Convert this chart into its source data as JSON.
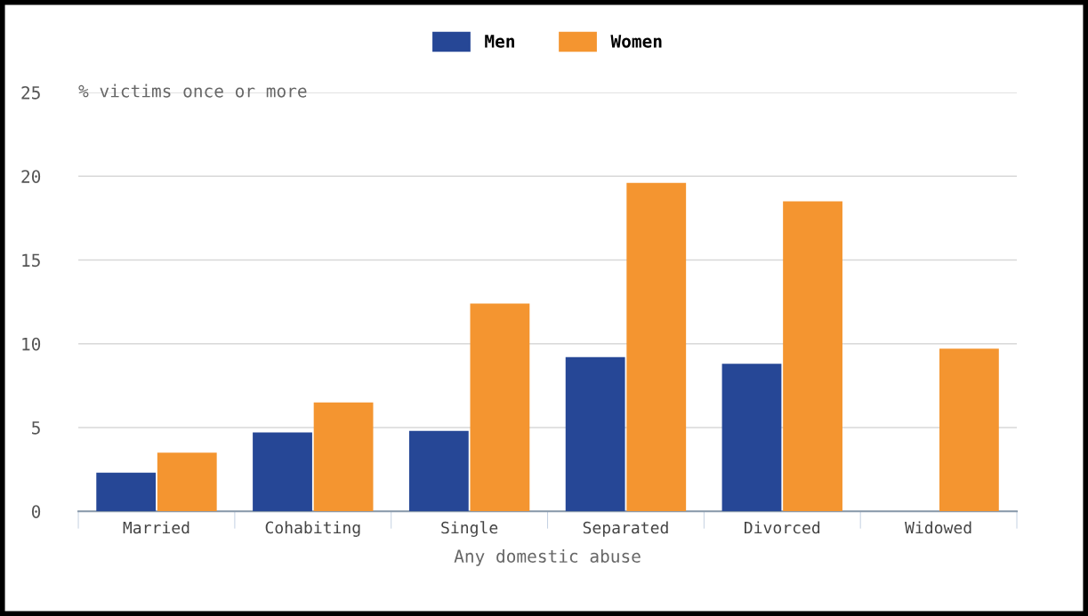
{
  "chart_data": {
    "type": "bar",
    "ylabel": "% victims once or more",
    "xlabel": "Any domestic abuse",
    "categories": [
      "Married",
      "Cohabiting",
      "Single",
      "Separated",
      "Divorced",
      "Widowed"
    ],
    "series": [
      {
        "name": "Men",
        "color": "#264796",
        "values": [
          2.3,
          4.7,
          4.8,
          9.2,
          8.8,
          0
        ]
      },
      {
        "name": "Women",
        "color": "#f49530",
        "values": [
          3.5,
          6.5,
          12.4,
          19.6,
          18.5,
          9.7
        ]
      }
    ],
    "ylim": [
      0,
      25
    ],
    "yticks": [
      0,
      5,
      10,
      15,
      20,
      25
    ],
    "grid": "y",
    "legend": "top"
  }
}
